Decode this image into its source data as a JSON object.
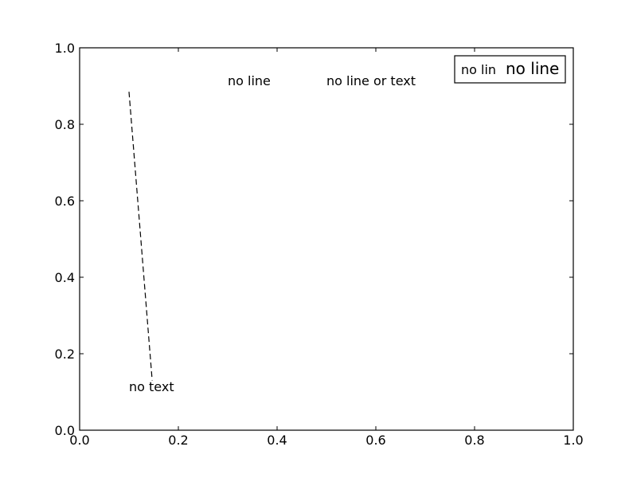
{
  "chart_data": {
    "type": "line",
    "title": "",
    "xlabel": "",
    "ylabel": "",
    "xlim": [
      0.0,
      1.0
    ],
    "ylim": [
      0.0,
      1.0
    ],
    "grid": false,
    "x_ticks": [
      0.0,
      0.2,
      0.4,
      0.6,
      0.8,
      1.0
    ],
    "y_ticks": [
      0.0,
      0.2,
      0.4,
      0.6,
      0.8,
      1.0
    ],
    "x_tick_labels": [
      "0.0",
      "0.2",
      "0.4",
      "0.6",
      "0.8",
      "1.0"
    ],
    "y_tick_labels": [
      "0.0",
      "0.2",
      "0.4",
      "0.6",
      "0.8",
      "1.0"
    ],
    "series": [
      {
        "style": "dashed",
        "color": "#000000",
        "x": [
          0.1,
          0.147
        ],
        "y": [
          0.885,
          0.13
        ]
      }
    ],
    "annotations": [
      {
        "text": "no text",
        "x": 0.1,
        "y": 0.1
      },
      {
        "text": "no line",
        "x": 0.3,
        "y": 0.9
      },
      {
        "text": "no line or text",
        "x": 0.5,
        "y": 0.9
      }
    ],
    "legend": {
      "location": "top-right",
      "entries": [
        {
          "text": "no lin",
          "size": "small"
        },
        {
          "text": "no line",
          "size": "large"
        }
      ]
    }
  }
}
